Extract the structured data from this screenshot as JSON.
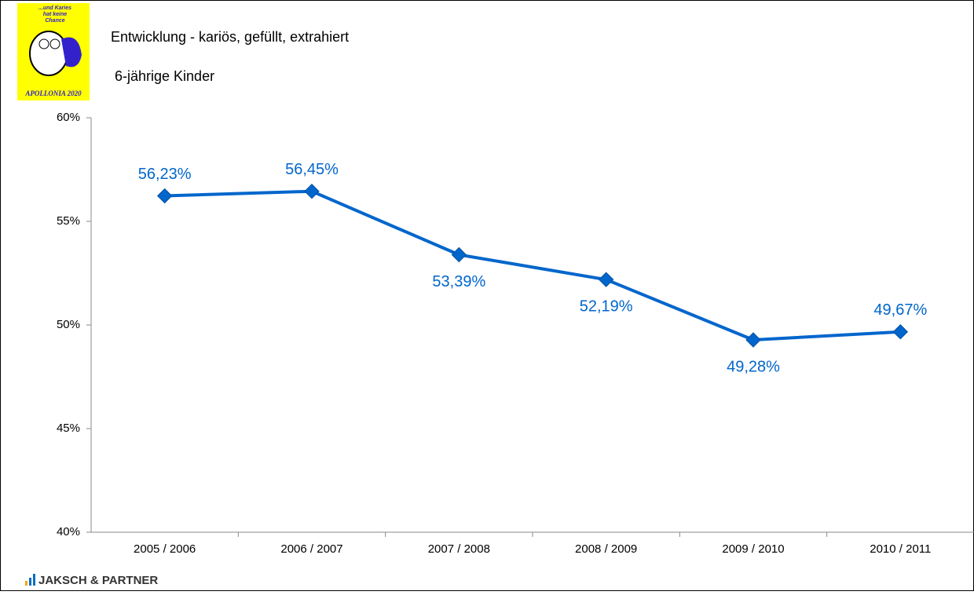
{
  "logo": {
    "slogan": [
      "...und Karies",
      "hat keine",
      "Chance"
    ],
    "name": "APOLLONIA 2020"
  },
  "footer": {
    "brand": "JAKSCH & PARTNER"
  },
  "chart_data": {
    "type": "line",
    "title": "Entwicklung - kariös, gefüllt, extrahiert",
    "subtitle": "6-jährige Kinder",
    "categories": [
      "2005 / 2006",
      "2006 / 2007",
      "2007 / 2008",
      "2008 / 2009",
      "2009 / 2010",
      "2010 / 2011"
    ],
    "series": [
      {
        "name": "6-jährige Kinder",
        "color": "#0066cc",
        "values": [
          56.23,
          56.45,
          53.39,
          52.19,
          49.28,
          49.67
        ],
        "value_labels": [
          "56,23%",
          "56,45%",
          "53,39%",
          "52,19%",
          "49,28%",
          "49,67%"
        ]
      }
    ],
    "ylim": [
      40,
      60
    ],
    "yticks": [
      {
        "value": 40,
        "label": "40%"
      },
      {
        "value": 45,
        "label": "45%"
      },
      {
        "value": 50,
        "label": "50%"
      },
      {
        "value": 55,
        "label": "55%"
      },
      {
        "value": 60,
        "label": "60%"
      }
    ],
    "grid": false
  }
}
